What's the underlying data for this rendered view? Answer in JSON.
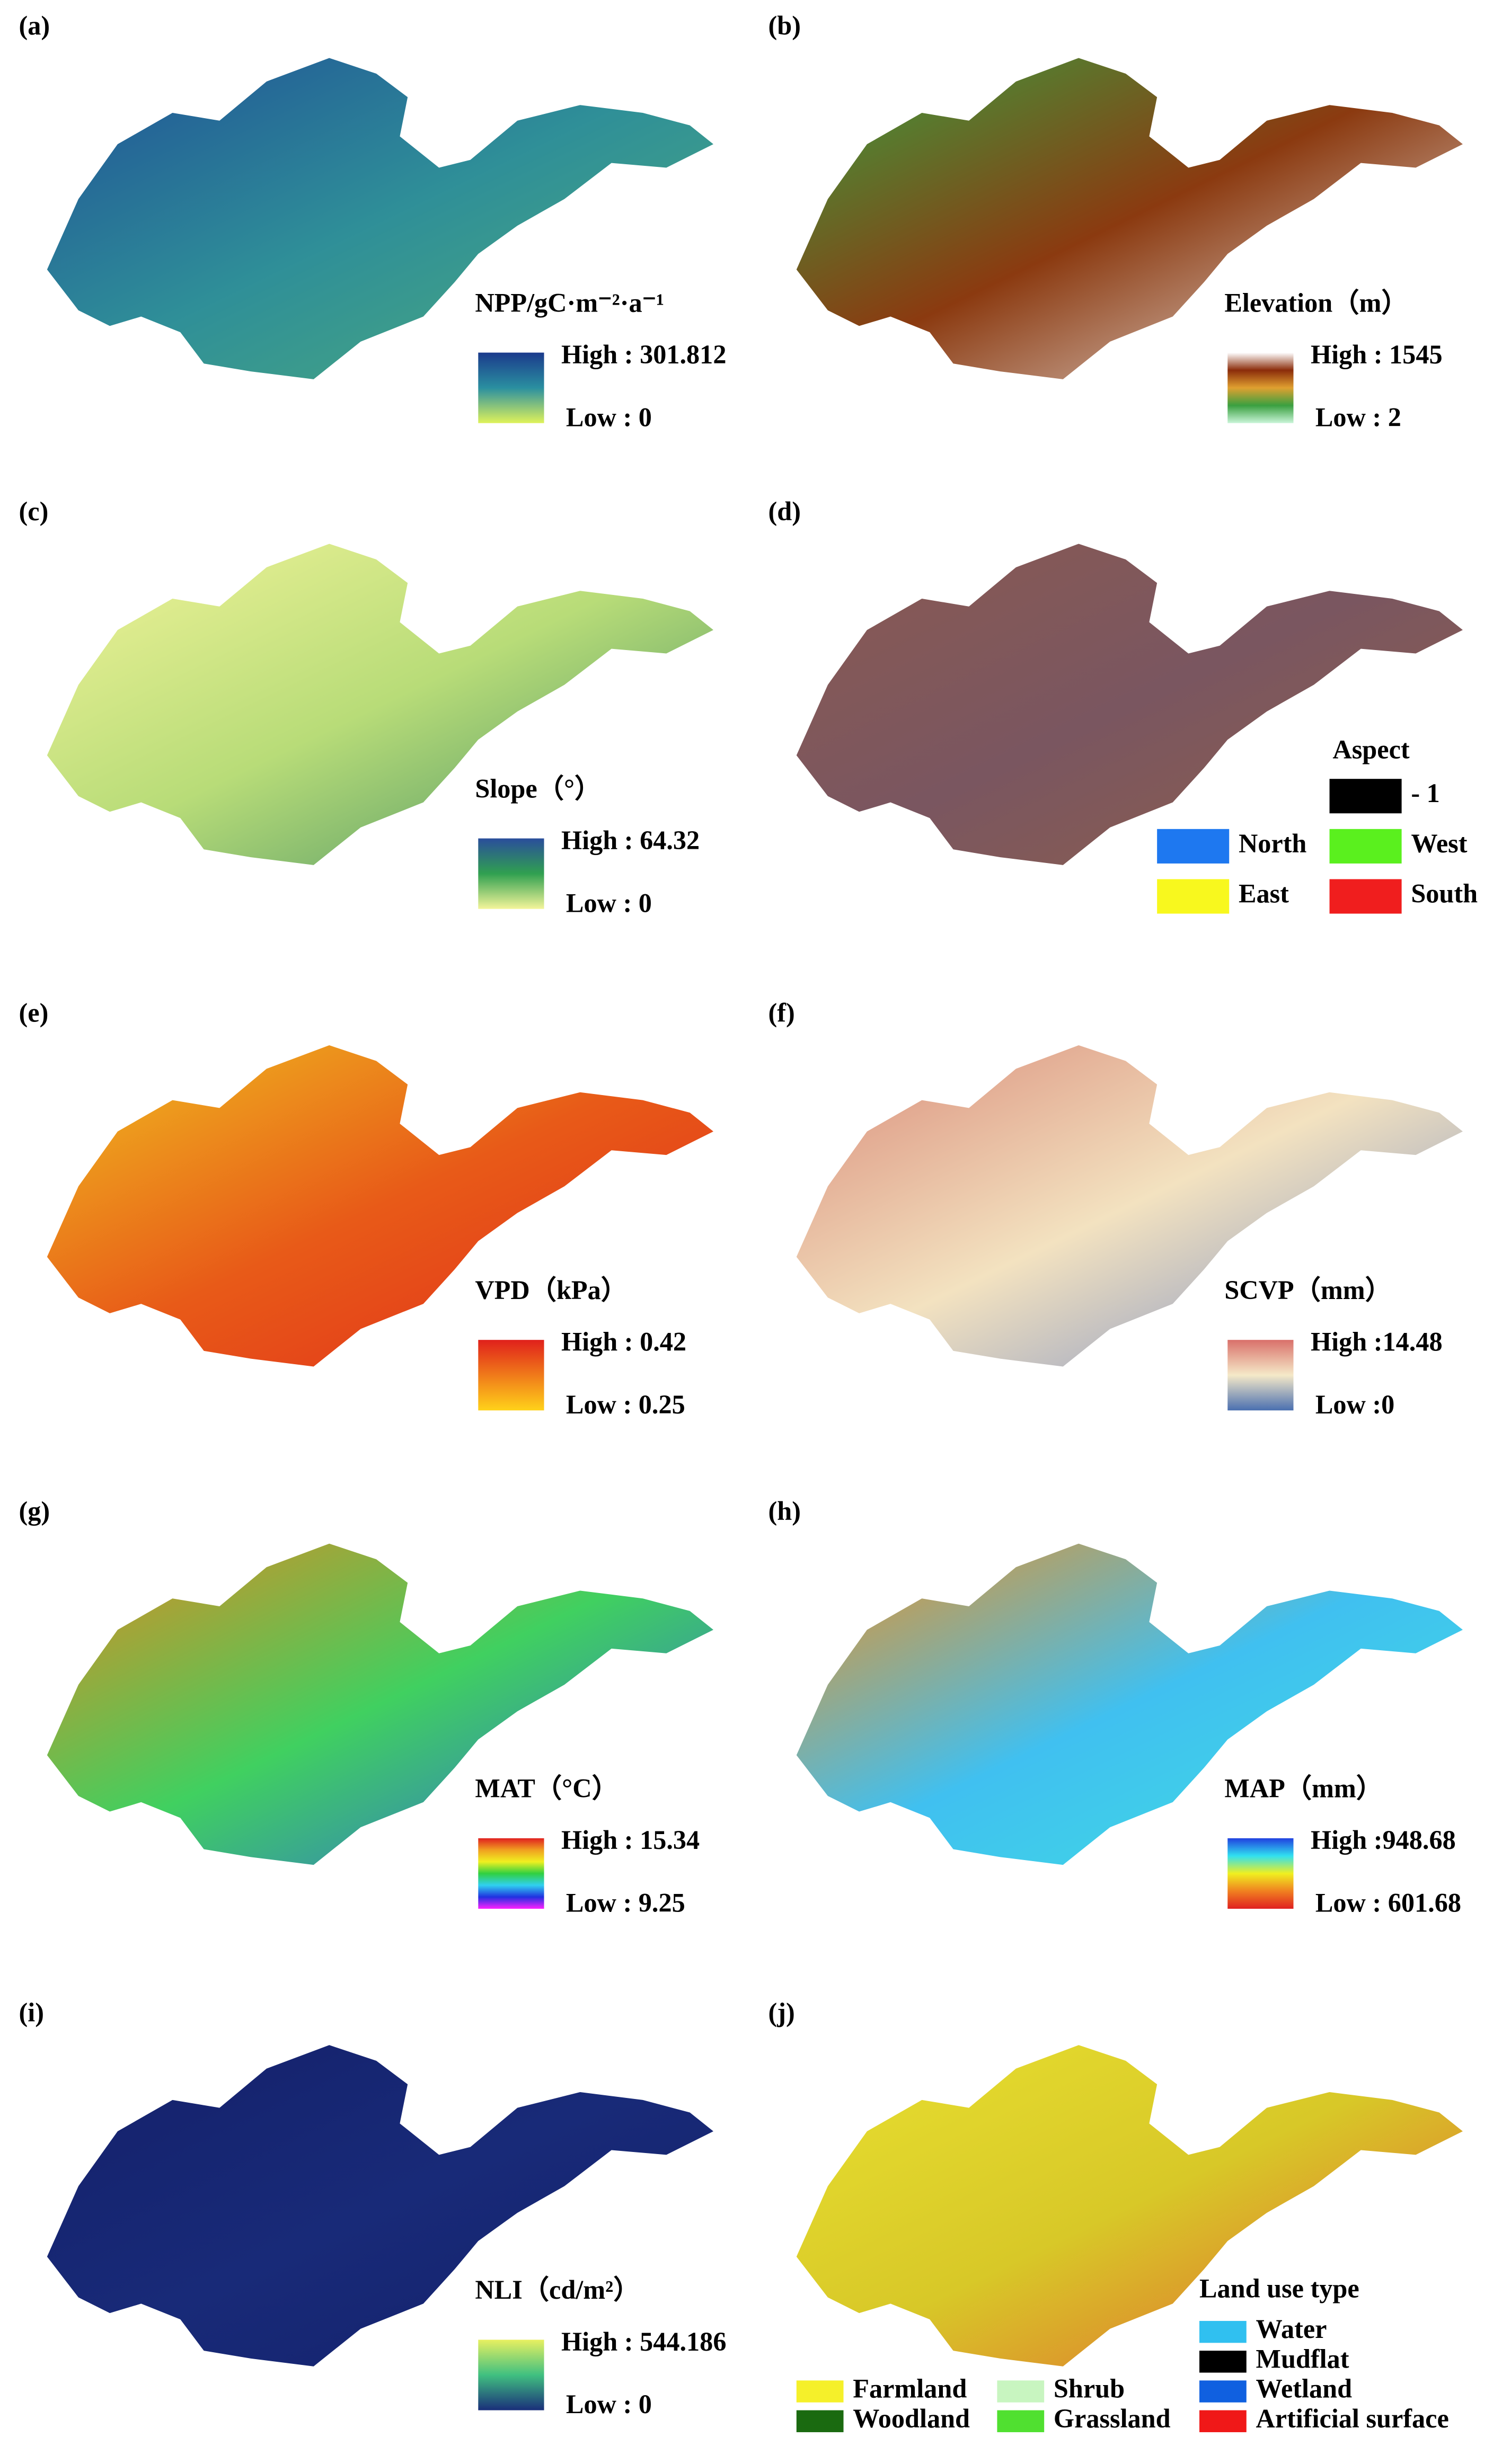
{
  "panels": [
    {
      "label": "(a)",
      "legend_title": "NPP/gC·m⁻²·a⁻¹",
      "high": "High : 301.812",
      "low": "Low : 0",
      "colors": [
        "#1b3a8c",
        "#2a8fa0",
        "#dff25a"
      ],
      "map_colors": [
        "#1f4f96",
        "#2f8f98",
        "#4fae7a"
      ]
    },
    {
      "label": "(b)",
      "legend_title": "Elevation（m）",
      "high": "High : 1545",
      "low": "Low : 2",
      "colors": [
        "#ffffff",
        "#8b2c0a",
        "#e0a030",
        "#3aa040",
        "#c9f5d8"
      ],
      "map_colors": [
        "#3aa040",
        "#8b3a10",
        "#f2f2f2"
      ]
    },
    {
      "label": "(c)",
      "legend_title": "Slope（°）",
      "high": "High : 64.32",
      "low": "Low : 0",
      "colors": [
        "#2a4d9c",
        "#30a050",
        "#f4f59a"
      ],
      "map_colors": [
        "#f2f49a",
        "#b8dc78",
        "#3c8a62"
      ]
    },
    {
      "label": "(d)",
      "legend_title": "Aspect",
      "classes": [
        {
          "name": "- 1",
          "color": "#000000"
        },
        {
          "name": "North",
          "color": "#1e78f0"
        },
        {
          "name": "West",
          "color": "#5af01e"
        },
        {
          "name": "East",
          "color": "#f8f81e"
        },
        {
          "name": "South",
          "color": "#f01e1e"
        }
      ],
      "map_colors": [
        "#8a5a52",
        "#7a5660",
        "#8f5f4a"
      ]
    },
    {
      "label": "(e)",
      "legend_title": "VPD（kPa）",
      "high": "High : 0.42",
      "low": "Low : 0.25",
      "colors": [
        "#e0201b",
        "#f07a1a",
        "#ffd21a"
      ],
      "map_colors": [
        "#f0c020",
        "#e85a18",
        "#e02a1b"
      ]
    },
    {
      "label": "(f)",
      "legend_title": "SCVP（mm）",
      "high": "High :14.48",
      "low": "Low :0",
      "colors": [
        "#d9706a",
        "#f5e9c8",
        "#4a6fb0"
      ],
      "map_colors": [
        "#d98a78",
        "#f3e2c0",
        "#6f86c2"
      ]
    },
    {
      "label": "(g)",
      "legend_title": "MAT（°C）",
      "high": "High : 15.34",
      "low": "Low : 9.25",
      "colors": [
        "#e02020",
        "#f0a020",
        "#f0f020",
        "#30d040",
        "#30d0f0",
        "#2030e0",
        "#ff20ff"
      ],
      "map_colors": [
        "#e08a20",
        "#40d060",
        "#3060e0"
      ]
    },
    {
      "label": "(h)",
      "legend_title": "MAP（mm）",
      "high": "High :948.68",
      "low": "Low : 601.68",
      "colors": [
        "#2040e0",
        "#30e0f0",
        "#f0f020",
        "#f08020",
        "#e02020"
      ],
      "map_colors": [
        "#f09020",
        "#40c0f0",
        "#40e0e0"
      ]
    },
    {
      "label": "(i)",
      "legend_title": "NLI（cd/m²）",
      "high": "High : 544.186",
      "low": "Low : 0",
      "colors": [
        "#e8f060",
        "#40c080",
        "#1a2f7a"
      ],
      "map_colors": [
        "#14206a",
        "#182a78",
        "#14206a"
      ]
    },
    {
      "label": "(j)",
      "legend_title": "Land use type",
      "classes": [
        {
          "name": "Water",
          "color": "#30c0f0"
        },
        {
          "name": "Mudflat",
          "color": "#000000"
        },
        {
          "name": "Wetland",
          "color": "#1060e0"
        },
        {
          "name": "Artificial surface",
          "color": "#f01818"
        },
        {
          "name": "Farmland",
          "color": "#f5f02a"
        },
        {
          "name": "Woodland",
          "color": "#1a6a10"
        },
        {
          "name": "Shrub",
          "color": "#c8f5c0"
        },
        {
          "name": "Grassland",
          "color": "#50e030"
        }
      ],
      "map_colors": [
        "#e8e030",
        "#d8c828",
        "#e05a30"
      ]
    }
  ]
}
